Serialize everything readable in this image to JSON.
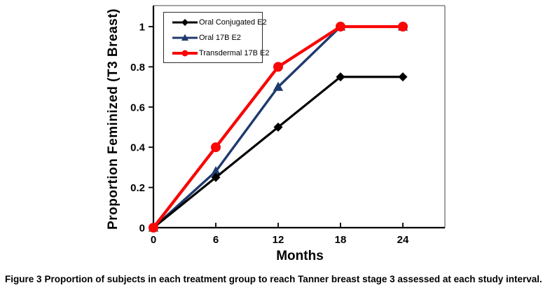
{
  "figure": {
    "caption_prefix": "Figure 3",
    "caption_text": "Proportion of subjects in each treatment group to reach Tanner breast stage 3 assessed at each study interval."
  },
  "chart_data": {
    "type": "line",
    "title": "",
    "xlabel": "Months",
    "ylabel": "Proportion Feminized (T3 Breast)",
    "x": [
      0,
      6,
      12,
      18,
      24
    ],
    "x_tick_labels": [
      "0",
      "6",
      "12",
      "18",
      "24"
    ],
    "y_ticks": [
      0,
      0.2,
      0.4,
      0.6,
      0.8,
      1
    ],
    "y_tick_labels": [
      "0",
      "0.2",
      "0.4",
      "0.6",
      "0.8",
      "1"
    ],
    "xlim": [
      0,
      28
    ],
    "ylim": [
      0,
      1.1
    ],
    "grid": false,
    "legend_position": "upper-left-inside",
    "series": [
      {
        "name": "Oral Conjugated E2",
        "color": "#000000",
        "marker": "diamond",
        "values": [
          0,
          0.25,
          0.5,
          0.75,
          0.75
        ]
      },
      {
        "name": "Oral 17B E2",
        "color": "#1F3A6E",
        "marker": "triangle",
        "values": [
          0,
          0.28,
          0.7,
          1.0,
          1.0
        ]
      },
      {
        "name": "Transdermal 17B E2",
        "color": "#F90606",
        "marker": "circle",
        "values": [
          0,
          0.4,
          0.8,
          1.0,
          1.0
        ]
      }
    ]
  }
}
